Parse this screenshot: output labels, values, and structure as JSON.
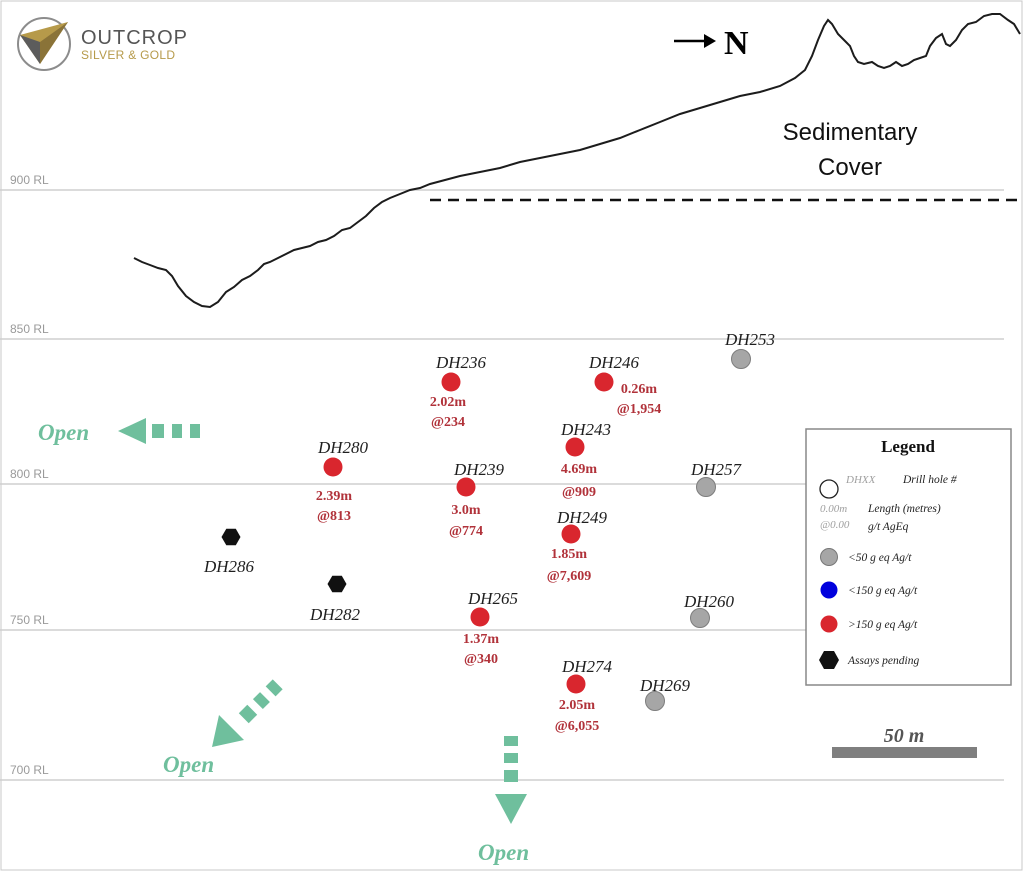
{
  "logo": {
    "line1": "OUTCROP",
    "line2": "SILVER & GOLD"
  },
  "north": {
    "label": "N"
  },
  "cover_label": [
    "Sedimentary",
    "Cover"
  ],
  "rl_levels": [
    {
      "label": "900 RL",
      "value": 900
    },
    {
      "label": "850 RL",
      "value": 850
    },
    {
      "label": "800 RL",
      "value": 800
    },
    {
      "label": "750 RL",
      "value": 750
    },
    {
      "label": "700 RL",
      "value": 700
    }
  ],
  "open_labels": [
    "Open",
    "Open",
    "Open"
  ],
  "holes": [
    {
      "id": "DH236",
      "cat": "high",
      "length": "2.02m",
      "grade": "@234"
    },
    {
      "id": "DH246",
      "cat": "high",
      "length": "0.26m",
      "grade": "@1,954"
    },
    {
      "id": "DH253",
      "cat": "low"
    },
    {
      "id": "DH280",
      "cat": "high",
      "length": "2.39m",
      "grade": "@813"
    },
    {
      "id": "DH239",
      "cat": "high",
      "length": "3.0m",
      "grade": "@774"
    },
    {
      "id": "DH243",
      "cat": "high",
      "length": "4.69m",
      "grade": "@909"
    },
    {
      "id": "DH257",
      "cat": "low"
    },
    {
      "id": "DH249",
      "cat": "high",
      "length": "1.85m",
      "grade": "@7,609"
    },
    {
      "id": "DH286",
      "cat": "pending"
    },
    {
      "id": "DH282",
      "cat": "pending"
    },
    {
      "id": "DH265",
      "cat": "high",
      "length": "1.37m",
      "grade": "@340"
    },
    {
      "id": "DH260",
      "cat": "low"
    },
    {
      "id": "DH274",
      "cat": "high",
      "length": "2.05m",
      "grade": "@6,055"
    },
    {
      "id": "DH269",
      "cat": "low"
    }
  ],
  "legend": {
    "title": "Legend",
    "dhxx": "DHXX",
    "drill_hole": "Drill hole #",
    "len_sample": "0.00m",
    "len_label": "Length (metres)",
    "grade_sample": "@0.00",
    "grade_label": "g/t AgEq",
    "items": [
      {
        "label": "<50 g eq Ag/t",
        "color": "#a6a6a6"
      },
      {
        "label": "<150 g eq Ag/t",
        "color": "#0000dd"
      },
      {
        "label": ">150 g eq Ag/t",
        "color": "#d9262e"
      },
      {
        "label": "Assays pending",
        "color": "#111111"
      }
    ]
  },
  "scale_bar": {
    "label": "50 m"
  },
  "colors": {
    "high": "#d9262e",
    "low": "#a6a6a6",
    "pending": "#111111",
    "open": "#6fbf9d",
    "value_text": "#b1323a"
  }
}
